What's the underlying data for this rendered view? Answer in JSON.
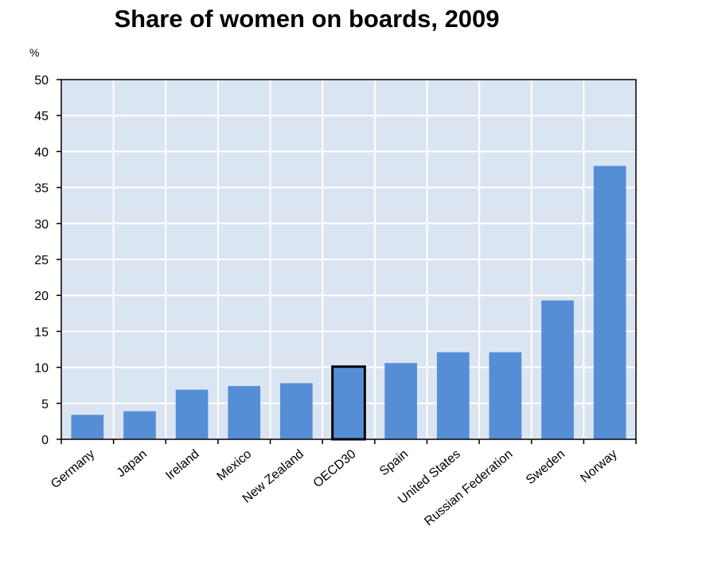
{
  "chart_data": {
    "type": "bar",
    "title": "Share of women on boards, 2009",
    "ylabel": "%",
    "xlabel": "",
    "ylim": [
      0,
      50
    ],
    "yticks": [
      0,
      5,
      10,
      15,
      20,
      25,
      30,
      35,
      40,
      45,
      50
    ],
    "grid": true,
    "categories": [
      "Germany",
      "Japan",
      "Ireland",
      "Mexico",
      "New Zealand",
      "OECD30",
      "Spain",
      "United States",
      "Russian Federation",
      "Sweden",
      "Norway"
    ],
    "values": [
      3.4,
      3.9,
      6.9,
      7.4,
      7.8,
      10.1,
      10.6,
      12.1,
      12.1,
      19.3,
      38.0
    ],
    "highlight": "OECD30",
    "colors": {
      "bar": "#558ED5",
      "highlight_fill": "#558ED5",
      "highlight_border": "#000000",
      "plot_background": "#DBE5F1",
      "grid": "#FFFFFF",
      "axis": "#000000"
    }
  }
}
